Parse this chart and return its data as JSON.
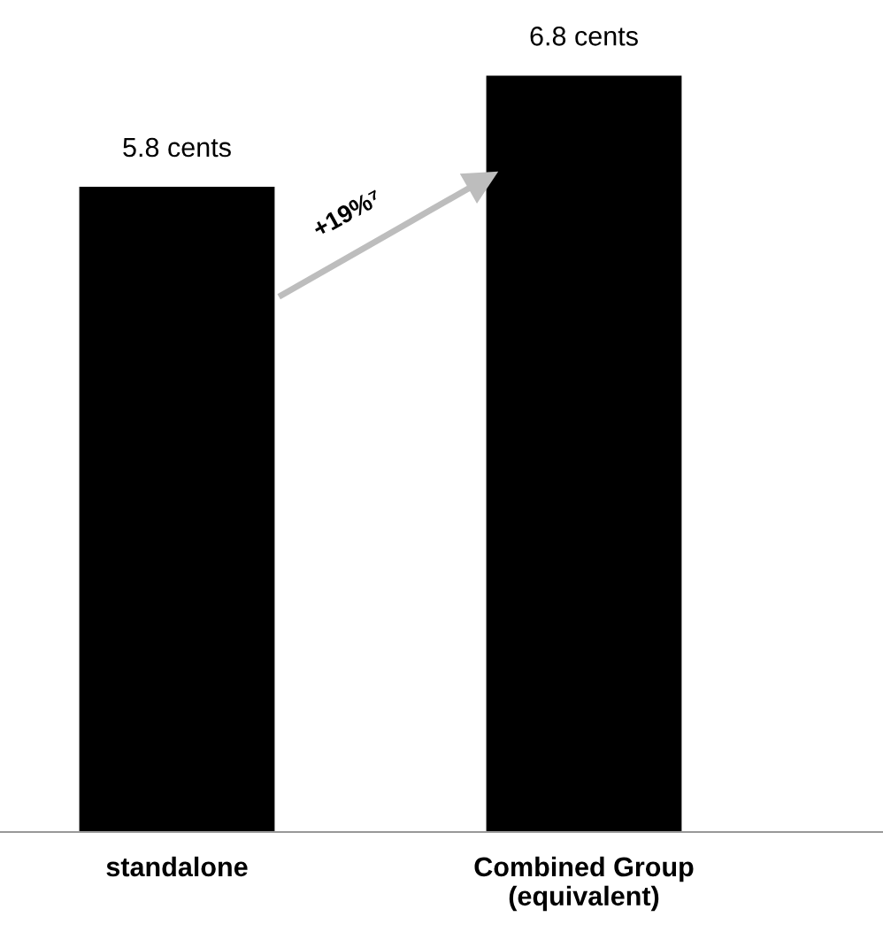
{
  "chart_data": {
    "type": "bar",
    "categories": [
      "standalone",
      "Combined Group\n(equivalent)"
    ],
    "values": [
      5.8,
      6.8
    ],
    "value_labels": [
      "5.8 cents",
      "6.8 cents"
    ],
    "color": "#000000",
    "tick_labels": "x",
    "grid": false,
    "legend": false,
    "annotations": [
      "+19%⁷"
    ]
  }
}
